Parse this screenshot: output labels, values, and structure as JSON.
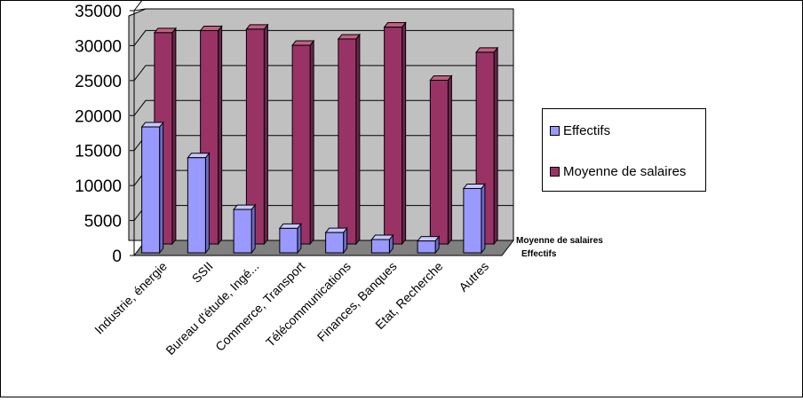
{
  "chart_data": {
    "type": "bar",
    "categories": [
      "Industrie, énergie",
      "SSII",
      "Bureau d'étude, Ingé...",
      "Commerce, Transport",
      "Télécommunications",
      "Finances, Banques",
      "Etat, Recherche",
      "Autres"
    ],
    "series": [
      {
        "name": "Effectifs",
        "values": [
          18000,
          13600,
          6200,
          3500,
          2900,
          1900,
          1700,
          9200
        ],
        "color": "#9999FF",
        "top_color": "#C8C8FF",
        "side_color": "#6B6BCC"
      },
      {
        "name": "Moyenne de salaires",
        "values": [
          30200,
          30500,
          30700,
          28400,
          29300,
          31000,
          23400,
          27400
        ],
        "color": "#993366",
        "top_color": "#C0607F",
        "side_color": "#6B2449"
      }
    ],
    "y_ticks": [
      "0",
      "5000",
      "10000",
      "15000",
      "20000",
      "25000",
      "30000",
      "35000"
    ],
    "ylim": [
      0,
      35000
    ],
    "legend": {
      "position": "right",
      "items": [
        "Effectifs",
        "Moyenne de salaires"
      ]
    },
    "depth_axis_labels": [
      "Moyenne de salaires",
      "Effectifs"
    ],
    "grid": true,
    "wall_color": "#C0C0C0",
    "floor_color": "#808080"
  }
}
